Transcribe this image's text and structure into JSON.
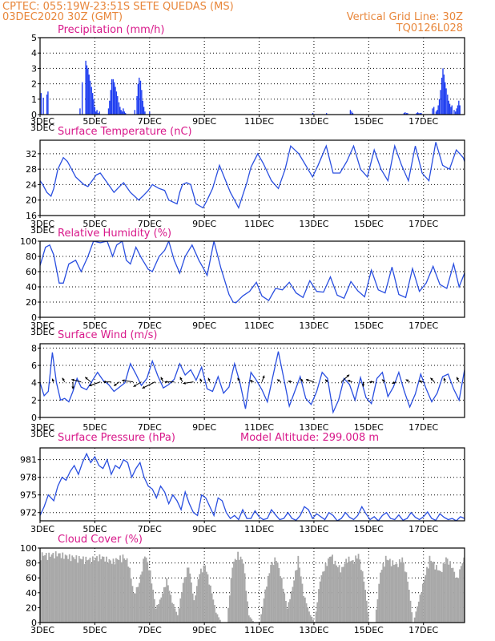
{
  "header": {
    "line1": "CPTEC:   055:19W-23:51S   SETE QUEDAS (MS)",
    "line2": "03DEC2020 30Z (GMT)",
    "right1": "Vertical Grid Line: 30Z",
    "right2": "TQ0126L028",
    "model_altitude": "Model Altitude: 299.008 m"
  },
  "colors": {
    "header": "#e8863a",
    "title": "#d8188a",
    "line": "#2a4fe0",
    "bar": "#1f3ef0",
    "cloud": "#a8a8a8",
    "axis": "#000000"
  },
  "chart_data": [
    {
      "type": "bar",
      "title": "Precipitation (mm/h)",
      "ylim": [
        0,
        5
      ],
      "yticks": [
        0,
        1,
        2,
        3,
        4,
        5
      ],
      "xlim": [
        0,
        15.5
      ],
      "x_ticks": [
        0,
        2,
        4,
        6,
        8,
        10,
        12,
        14
      ],
      "x_labels": [
        "3DEC",
        "5DEC",
        "7DEC",
        "9DEC",
        "11DEC",
        "13DEC",
        "15DEC",
        "17DEC"
      ],
      "x": [
        0.04,
        0.12,
        0.25,
        0.29,
        1.46,
        1.54,
        1.67,
        1.71,
        1.75,
        1.79,
        1.83,
        1.88,
        1.92,
        1.96,
        2.0,
        2.04,
        2.08,
        2.12,
        2.17,
        2.5,
        2.54,
        2.58,
        2.62,
        2.67,
        2.71,
        2.75,
        2.79,
        2.83,
        2.88,
        2.92,
        2.96,
        3.0,
        3.04,
        3.08,
        3.12,
        3.46,
        3.54,
        3.58,
        3.62,
        3.67,
        3.71,
        3.75,
        3.79,
        3.83,
        4.0,
        9.96,
        10.46,
        11.33,
        11.38,
        11.42,
        13.29,
        13.33,
        13.38,
        13.42,
        13.75,
        13.79,
        13.83,
        13.88,
        13.92,
        14.33,
        14.38,
        14.46,
        14.5,
        14.54,
        14.58,
        14.62,
        14.67,
        14.71,
        14.75,
        14.79,
        14.83,
        14.88,
        14.92,
        14.96,
        15.0,
        15.04,
        15.12,
        15.17,
        15.21,
        15.25,
        15.29,
        15.33
      ],
      "values": [
        1.4,
        1.1,
        1.3,
        1.5,
        0.4,
        2.1,
        3.5,
        3.2,
        3.0,
        2.6,
        2.2,
        1.8,
        1.4,
        1.0,
        0.5,
        0.2,
        0.3,
        0.1,
        0.2,
        0.4,
        0.9,
        1.6,
        2.3,
        2.3,
        2.1,
        1.8,
        1.5,
        1.2,
        0.8,
        0.5,
        0.3,
        0.2,
        0.4,
        0.2,
        0.1,
        0.3,
        1.2,
        2.0,
        2.4,
        2.2,
        1.6,
        0.9,
        0.5,
        0.2,
        0.2,
        0.1,
        0.1,
        0.3,
        0.2,
        0.1,
        0.1,
        0.15,
        0.1,
        0.1,
        0.1,
        0.15,
        0.1,
        0.1,
        0.1,
        0.4,
        0.5,
        0.2,
        0.3,
        0.6,
        1.0,
        1.6,
        2.4,
        3.0,
        2.6,
        2.1,
        1.7,
        1.3,
        0.9,
        0.7,
        0.5,
        0.6,
        0.3,
        0.2,
        0.4,
        0.6,
        0.9,
        0.6
      ]
    },
    {
      "type": "line",
      "title": "Surface Temperature (nC)",
      "ylim": [
        16,
        35.5
      ],
      "yticks": [
        16,
        20,
        24,
        28,
        32
      ],
      "x": [
        0,
        0.1,
        0.25,
        0.4,
        0.5,
        0.65,
        0.85,
        1.0,
        1.3,
        1.6,
        1.75,
        1.9,
        2.05,
        2.2,
        2.5,
        2.7,
        2.9,
        3.05,
        3.3,
        3.45,
        3.6,
        3.75,
        3.95,
        4.1,
        4.35,
        4.55,
        4.7,
        5.0,
        5.1,
        5.2,
        5.35,
        5.5,
        5.7,
        5.95,
        6.1,
        6.3,
        6.55,
        6.75,
        6.95,
        7.1,
        7.25,
        7.55,
        7.7,
        7.95,
        8.15,
        8.45,
        8.7,
        8.95,
        9.15,
        9.45,
        9.7,
        9.95,
        10.15,
        10.45,
        10.7,
        10.95,
        11.2,
        11.45,
        11.7,
        11.95,
        12.2,
        12.45,
        12.7,
        12.95,
        13.2,
        13.45,
        13.7,
        13.95,
        14.2,
        14.45,
        14.7,
        14.95,
        15.2,
        15.45,
        15.5
      ],
      "values": [
        25,
        24,
        22,
        21,
        23,
        28,
        31,
        30,
        26,
        24,
        23.5,
        25,
        26.5,
        27,
        24,
        22,
        23.5,
        24.5,
        22,
        21,
        20,
        21,
        22.5,
        24,
        23,
        22.5,
        20,
        19,
        22,
        24,
        24.5,
        24,
        19,
        18,
        20,
        23,
        29,
        25.5,
        22,
        20,
        18,
        24.5,
        28.5,
        32,
        29.5,
        25,
        23,
        28,
        34,
        32,
        29,
        26,
        29,
        34,
        27,
        27,
        30,
        34,
        28,
        26,
        33,
        28,
        25,
        34,
        29,
        25,
        34,
        27,
        25,
        35,
        29,
        28,
        33,
        31,
        30
      ]
    },
    {
      "type": "line",
      "title": "Relative Humidity (%)",
      "ylim": [
        0,
        100
      ],
      "yticks": [
        0,
        20,
        40,
        60,
        80,
        100
      ],
      "x": [
        0,
        0.2,
        0.35,
        0.5,
        0.7,
        0.85,
        1.05,
        1.3,
        1.5,
        1.75,
        1.95,
        2.2,
        2.45,
        2.65,
        2.8,
        3.0,
        3.15,
        3.3,
        3.5,
        3.7,
        3.95,
        4.1,
        4.35,
        4.55,
        4.7,
        4.9,
        5.1,
        5.3,
        5.55,
        5.8,
        6.0,
        6.1,
        6.35,
        6.6,
        6.9,
        7.05,
        7.15,
        7.4,
        7.65,
        7.9,
        8.1,
        8.35,
        8.6,
        8.85,
        9.1,
        9.35,
        9.6,
        9.85,
        10.1,
        10.35,
        10.6,
        10.85,
        11.1,
        11.35,
        11.6,
        11.85,
        12.1,
        12.35,
        12.6,
        12.85,
        13.1,
        13.35,
        13.6,
        13.85,
        14.1,
        14.35,
        14.6,
        14.85,
        15.1,
        15.3,
        15.5
      ],
      "values": [
        68,
        92,
        95,
        82,
        45,
        45,
        70,
        75,
        60,
        80,
        100,
        98,
        100,
        80,
        95,
        100,
        75,
        70,
        92,
        78,
        63,
        60,
        80,
        88,
        100,
        75,
        58,
        80,
        95,
        75,
        62,
        55,
        100,
        65,
        30,
        20,
        19,
        28,
        34,
        46,
        28,
        22,
        38,
        36,
        46,
        32,
        26,
        48,
        34,
        33,
        53,
        29,
        25,
        47,
        35,
        27,
        62,
        36,
        32,
        66,
        30,
        26,
        64,
        34,
        45,
        67,
        43,
        38,
        70,
        40,
        58
      ]
    },
    {
      "type": "line",
      "title": "Surface Wind (m/s)",
      "ylim": [
        0,
        8.5
      ],
      "yticks": [
        0,
        2,
        4,
        6,
        8
      ],
      "x": [
        0,
        0.15,
        0.3,
        0.45,
        0.6,
        0.75,
        0.9,
        1.05,
        1.2,
        1.35,
        1.5,
        1.7,
        1.9,
        2.1,
        2.3,
        2.5,
        2.7,
        2.9,
        3.1,
        3.3,
        3.5,
        3.7,
        3.9,
        4.1,
        4.3,
        4.5,
        4.7,
        4.9,
        5.1,
        5.3,
        5.5,
        5.7,
        5.9,
        6.1,
        6.3,
        6.5,
        6.7,
        6.9,
        7.1,
        7.3,
        7.5,
        7.7,
        7.9,
        8.1,
        8.3,
        8.5,
        8.7,
        8.9,
        9.1,
        9.3,
        9.5,
        9.7,
        9.9,
        10.1,
        10.3,
        10.5,
        10.7,
        10.9,
        11.1,
        11.3,
        11.5,
        11.7,
        11.9,
        12.1,
        12.3,
        12.5,
        12.7,
        12.9,
        13.1,
        13.3,
        13.5,
        13.7,
        13.9,
        14.1,
        14.3,
        14.5,
        14.7,
        14.9,
        15.1,
        15.3,
        15.5
      ],
      "values": [
        4,
        2.5,
        3,
        7.5,
        4,
        2,
        2.2,
        1.8,
        3,
        4.5,
        3.5,
        3.2,
        4.2,
        5.2,
        4.3,
        3.8,
        3,
        3.5,
        4,
        6.2,
        5,
        3.7,
        4.5,
        6.5,
        4.8,
        3.4,
        3.8,
        4.4,
        6.2,
        4.9,
        5.5,
        4.3,
        5.8,
        3.3,
        3,
        4.7,
        2.8,
        3.5,
        6.2,
        4,
        1,
        5.2,
        4.3,
        3.2,
        1.8,
        4.7,
        7.6,
        4.5,
        1.3,
        3,
        4.7,
        2.2,
        1.5,
        3,
        5.2,
        4.5,
        0.6,
        2,
        4.5,
        3.8,
        2,
        4.6,
        2.3,
        1.6,
        4.5,
        5.2,
        2.4,
        3.5,
        5.2,
        3,
        1.2,
        2.7,
        5,
        3.3,
        1.8,
        2.8,
        4.7,
        5,
        3.3,
        2,
        5.5
      ],
      "arrows": [
        {
          "x": 0.5,
          "dx": -2,
          "dy": -4
        },
        {
          "x": 0.9,
          "dx": -3,
          "dy": -5
        },
        {
          "x": 1.2,
          "dx": 0,
          "dy": 9
        },
        {
          "x": 1.5,
          "dx": -12,
          "dy": -3
        },
        {
          "x": 1.85,
          "dx": -7,
          "dy": -6
        },
        {
          "x": 2.2,
          "dx": -14,
          "dy": 5
        },
        {
          "x": 2.6,
          "dx": -10,
          "dy": 0
        },
        {
          "x": 2.9,
          "dx": -7,
          "dy": 5
        },
        {
          "x": 3.4,
          "dx": -14,
          "dy": -2
        },
        {
          "x": 3.7,
          "dx": -10,
          "dy": 6
        },
        {
          "x": 4.2,
          "dx": -16,
          "dy": 8
        },
        {
          "x": 4.5,
          "dx": -3,
          "dy": -6
        },
        {
          "x": 4.9,
          "dx": -12,
          "dy": 0
        },
        {
          "x": 5.2,
          "dx": -3,
          "dy": -6
        },
        {
          "x": 5.6,
          "dx": -13,
          "dy": 2
        },
        {
          "x": 5.9,
          "dx": -2,
          "dy": -4
        },
        {
          "x": 6.2,
          "dx": -2,
          "dy": -5
        },
        {
          "x": 7.3,
          "dx": -3,
          "dy": -5
        },
        {
          "x": 7.8,
          "dx": -5,
          "dy": -2
        },
        {
          "x": 8.1,
          "dx": 3,
          "dy": -8
        },
        {
          "x": 8.8,
          "dx": -5,
          "dy": -3
        },
        {
          "x": 9.2,
          "dx": -5,
          "dy": -1
        },
        {
          "x": 9.6,
          "dx": -3,
          "dy": -4
        },
        {
          "x": 10.0,
          "dx": -10,
          "dy": -3
        },
        {
          "x": 10.5,
          "dx": -3,
          "dy": -3
        },
        {
          "x": 11.0,
          "dx": 10,
          "dy": -9
        },
        {
          "x": 11.4,
          "dx": -6,
          "dy": -2
        },
        {
          "x": 11.8,
          "dx": 0,
          "dy": 6
        },
        {
          "x": 12.2,
          "dx": -6,
          "dy": 0
        },
        {
          "x": 12.6,
          "dx": -4,
          "dy": -3
        },
        {
          "x": 13.0,
          "dx": -5,
          "dy": 2
        },
        {
          "x": 13.5,
          "dx": -5,
          "dy": -3
        },
        {
          "x": 14.0,
          "dx": -6,
          "dy": -1
        },
        {
          "x": 14.4,
          "dx": -5,
          "dy": -5
        },
        {
          "x": 14.8,
          "dx": -2,
          "dy": -5
        },
        {
          "x": 15.3,
          "dx": -3,
          "dy": -6
        }
      ]
    },
    {
      "type": "line",
      "title": "Surface Pressure (hPa)",
      "ylim": [
        970.6,
        983
      ],
      "yticks": [
        972,
        975,
        978,
        981
      ],
      "x": [
        0,
        0.15,
        0.3,
        0.5,
        0.65,
        0.8,
        0.95,
        1.1,
        1.25,
        1.4,
        1.55,
        1.7,
        1.85,
        2.0,
        2.15,
        2.3,
        2.45,
        2.6,
        2.75,
        2.9,
        3.05,
        3.2,
        3.35,
        3.5,
        3.65,
        3.8,
        3.95,
        4.1,
        4.25,
        4.4,
        4.55,
        4.7,
        4.85,
        5.0,
        5.15,
        5.3,
        5.45,
        5.6,
        5.75,
        5.9,
        6.05,
        6.2,
        6.35,
        6.5,
        6.65,
        6.8,
        6.95,
        7.1,
        7.25,
        7.4,
        7.55,
        7.7,
        7.85,
        8.0,
        8.15,
        8.3,
        8.45,
        8.6,
        8.75,
        8.9,
        9.05,
        9.2,
        9.35,
        9.5,
        9.65,
        9.8,
        9.95,
        10.1,
        10.25,
        10.4,
        10.55,
        10.7,
        10.85,
        11.0,
        11.15,
        11.3,
        11.45,
        11.6,
        11.75,
        11.9,
        12.05,
        12.2,
        12.35,
        12.5,
        12.65,
        12.8,
        12.95,
        13.1,
        13.25,
        13.4,
        13.55,
        13.7,
        13.85,
        14.0,
        14.15,
        14.3,
        14.45,
        14.6,
        14.75,
        14.9,
        15.05,
        15.2,
        15.35,
        15.5
      ],
      "values": [
        971.5,
        973,
        975,
        974,
        976.5,
        978,
        977.5,
        979,
        980,
        978.5,
        980.5,
        982,
        980.5,
        981.5,
        980,
        979.5,
        981,
        978.5,
        980,
        979.5,
        981,
        980.5,
        978,
        979.5,
        980.5,
        978,
        976.5,
        976,
        974.5,
        976.5,
        975.5,
        973.5,
        975,
        974,
        972.5,
        975.5,
        973.5,
        972,
        971.5,
        975,
        974.5,
        973,
        971.5,
        974.5,
        974,
        972,
        971,
        971.5,
        970.8,
        972.5,
        971,
        971,
        972.3,
        971.3,
        970.8,
        971,
        972.5,
        971.6,
        970.8,
        971,
        972,
        971,
        970.7,
        971.5,
        973,
        972.5,
        971,
        971.8,
        971.3,
        970.8,
        972,
        971.5,
        970.6,
        971,
        972,
        971.2,
        970.8,
        971.5,
        973,
        971.8,
        970.8,
        971.3,
        970.6,
        971.5,
        972,
        971,
        970.8,
        971.6,
        970.7,
        971,
        972,
        971.2,
        970.8,
        971.3,
        972.1,
        971,
        970.7,
        971.8,
        971.2,
        970.8,
        971,
        970.6,
        971.3,
        971
      ]
    },
    {
      "type": "bar",
      "title": "Cloud Cover (%)",
      "ylim": [
        0,
        100
      ],
      "yticks": [
        0,
        20,
        40,
        60,
        80,
        100
      ],
      "profile_x": [
        0,
        0.3,
        0.6,
        1.0,
        1.4,
        1.8,
        2.2,
        2.6,
        3.0,
        3.2,
        3.4,
        3.6,
        3.8,
        4.0,
        4.2,
        4.4,
        4.6,
        4.8,
        5.0,
        5.2,
        5.4,
        5.6,
        5.8,
        6.0,
        6.2,
        6.4,
        6.6,
        6.8,
        7.0,
        7.2,
        7.4,
        7.6,
        7.8,
        8.0,
        8.2,
        8.4,
        8.6,
        8.8,
        9.0,
        9.2,
        9.4,
        9.6,
        9.8,
        10.0,
        10.2,
        10.4,
        10.6,
        10.8,
        11.0,
        11.2,
        11.4,
        11.6,
        11.8,
        12.0,
        12.2,
        12.4,
        12.6,
        12.8,
        13.0,
        13.2,
        13.4,
        13.6,
        13.8,
        14.0,
        14.2,
        14.4,
        14.6,
        14.8,
        15.0,
        15.2,
        15.4,
        15.5
      ],
      "values": [
        95,
        94,
        96,
        92,
        90,
        88,
        92,
        85,
        92,
        85,
        40,
        55,
        96,
        70,
        20,
        35,
        60,
        30,
        10,
        55,
        80,
        30,
        70,
        80,
        50,
        15,
        0,
        0,
        80,
        95,
        85,
        10,
        0,
        0,
        45,
        80,
        90,
        60,
        20,
        50,
        90,
        40,
        15,
        0,
        60,
        80,
        95,
        80,
        75,
        90,
        85,
        95,
        60,
        0,
        0,
        70,
        90,
        85,
        80,
        90,
        60,
        0,
        30,
        60,
        90,
        80,
        70,
        90,
        80,
        60,
        85,
        90
      ]
    }
  ]
}
